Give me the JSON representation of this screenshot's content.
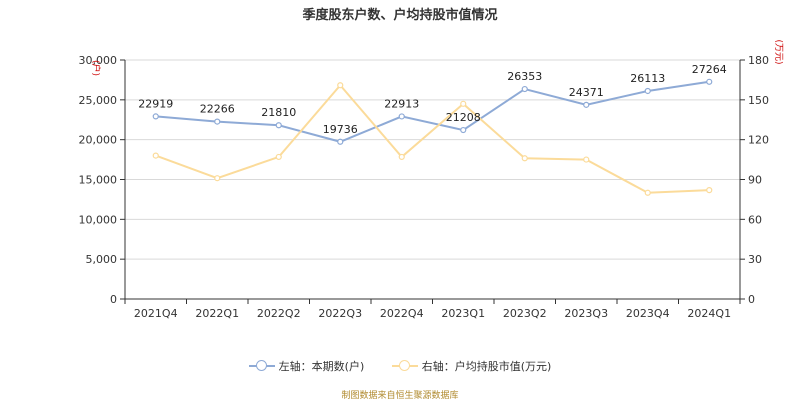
{
  "title": "季度股东户数、户均持股市值情况",
  "source_note": "制图数据来自恒生聚源数据库",
  "colors": {
    "left_series": "#8eaad6",
    "right_series": "#fbdb9a"
  },
  "chart_data": {
    "type": "line",
    "title": "季度股东户数、户均持股市值情况",
    "categories": [
      "2021Q4",
      "2022Q1",
      "2022Q2",
      "2022Q3",
      "2022Q4",
      "2023Q1",
      "2023Q2",
      "2023Q3",
      "2023Q4",
      "2024Q1"
    ],
    "left_axis": {
      "unit": "(户)",
      "min": 0,
      "max": 30000,
      "ticks": [
        0,
        5000,
        10000,
        15000,
        20000,
        25000,
        30000
      ],
      "tick_labels": [
        "0",
        "5,000",
        "10,000",
        "15,000",
        "20,000",
        "25,000",
        "30,000"
      ]
    },
    "right_axis": {
      "unit": "(万元)",
      "min": 0,
      "max": 180,
      "ticks": [
        0,
        30,
        60,
        90,
        120,
        150,
        180
      ],
      "tick_labels": [
        "0",
        "30",
        "60",
        "90",
        "120",
        "150",
        "180"
      ]
    },
    "grid": true,
    "legend_position": "bottom",
    "series": [
      {
        "name": "左轴：本期数(户)",
        "axis": "left",
        "values": [
          22919,
          22266,
          21810,
          19736,
          22913,
          21208,
          26353,
          24371,
          26113,
          27264
        ],
        "labels": [
          "22919",
          "22266",
          "21810",
          "19736",
          "22913",
          "21208",
          "26353",
          "24371",
          "26113",
          "27264"
        ]
      },
      {
        "name": "右轴：户均持股市值(万元)",
        "axis": "right",
        "values": [
          108,
          91,
          107,
          161,
          107,
          147,
          106,
          105,
          80,
          82
        ]
      }
    ]
  }
}
